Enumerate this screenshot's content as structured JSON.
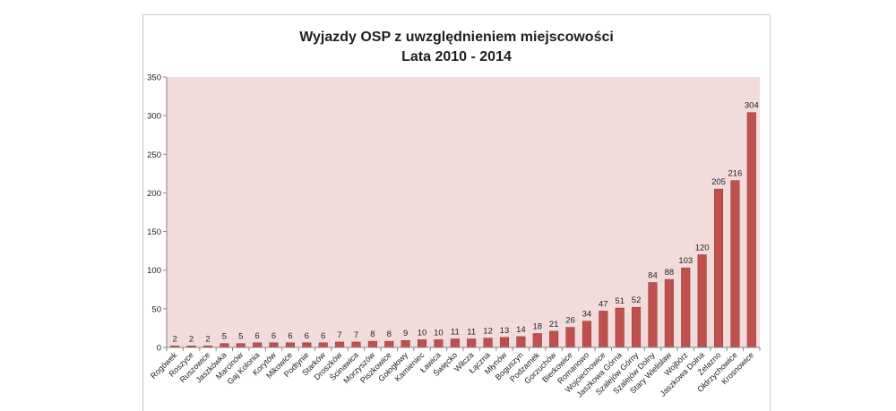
{
  "chart_data": {
    "type": "bar",
    "title": "Wyjazdy OSP z uwzględnieniem miejscowości",
    "subtitle": "Lata 2010 - 2014",
    "xlabel": "",
    "ylabel": "",
    "ylim": [
      0,
      350
    ],
    "yticks": [
      0,
      50,
      100,
      150,
      200,
      250,
      300,
      350
    ],
    "grid": false,
    "legend": "none",
    "categories": [
      "Rogówek",
      "Roszyce",
      "Ruszowice",
      "Jaszkówka",
      "Marcinów",
      "Gaj Kolonia",
      "Korytów",
      "Mikowice",
      "Podtynie",
      "Starków",
      "Droszków",
      "Ścinawica",
      "Morzyszów",
      "Piszkowice",
      "Gołogłowy",
      "Kamieniec",
      "Ławica",
      "Święcko",
      "Wilcza",
      "Łączna",
      "Młynów",
      "Boguszyn",
      "Podzamek",
      "Gorzuchów",
      "Bierkowice",
      "Romanowo",
      "Wojciechowice",
      "Jaszkowa Górna",
      "Szalejów Górny",
      "Szalejów Dolny",
      "Stary Wielisław",
      "Wojbórz",
      "Jaszkowa Dolna",
      "Żelazno",
      "Ołdrzychowice",
      "Krosnowice"
    ],
    "values": [
      2,
      2,
      2,
      5,
      5,
      6,
      6,
      6,
      6,
      6,
      7,
      7,
      8,
      8,
      9,
      10,
      10,
      11,
      11,
      12,
      13,
      14,
      18,
      21,
      26,
      34,
      47,
      51,
      52,
      84,
      88,
      103,
      120,
      205,
      216,
      304
    ],
    "colors": {
      "bar": "#c0504d",
      "bar_edge": "#8c3431",
      "plot_bg": "#f2dcdb",
      "axis": "#868686"
    }
  }
}
